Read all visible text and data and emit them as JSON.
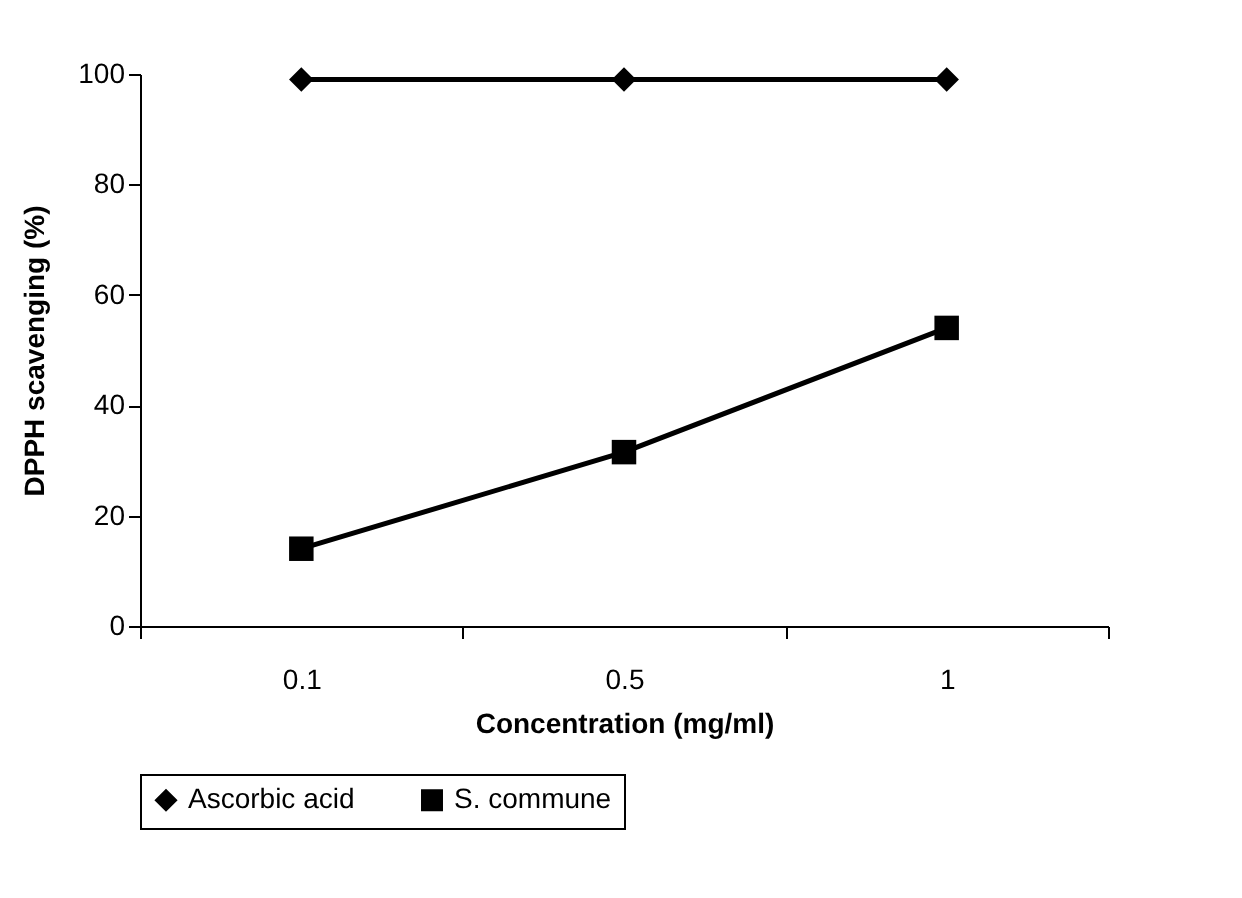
{
  "chart_data": {
    "type": "line",
    "xlabel": "Concentration (mg/ml)",
    "ylabel": "DPPH scavenging (%)",
    "categories": [
      "0.1",
      "0.5",
      "1"
    ],
    "series": [
      {
        "name": "Ascorbic acid",
        "color": "#000000",
        "marker": "diamond",
        "values": [
          99,
          99,
          99
        ]
      },
      {
        "name": "S. commune",
        "color": "#000000",
        "marker": "square",
        "values": [
          14,
          31.5,
          54
        ]
      }
    ],
    "ylim": [
      0,
      100
    ],
    "yticks": [
      0,
      20,
      40,
      60,
      80,
      100
    ],
    "grid": false,
    "legend": "bottom",
    "line_style": "solid"
  }
}
